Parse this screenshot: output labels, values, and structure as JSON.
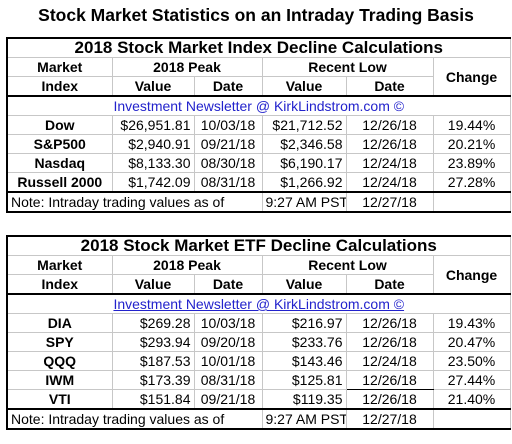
{
  "title": "Stock Market Statistics on an Intraday Trading Basis",
  "headers": {
    "market": "Market",
    "index": "Index",
    "peak": "2018 Peak",
    "low": "Recent Low",
    "value": "Value",
    "date": "Date",
    "change": "Change"
  },
  "newsletter": "Investment Newsletter @ KirkLindstrom.com ©",
  "note": {
    "label": "Note:  Intraday trading values as of",
    "time": "9:27 AM PST",
    "date": "12/27/18"
  },
  "index_table": {
    "title": "2018 Stock Market Index Decline Calculations",
    "rows": [
      {
        "name": "Dow",
        "peak_value": "$26,951.81",
        "peak_date": "10/03/18",
        "low_value": "$21,712.52",
        "low_date": "12/26/18",
        "change": "19.44%"
      },
      {
        "name": "S&P500",
        "peak_value": "$2,940.91",
        "peak_date": "09/21/18",
        "low_value": "$2,346.58",
        "low_date": "12/26/18",
        "change": "20.21%"
      },
      {
        "name": "Nasdaq",
        "peak_value": "$8,133.30",
        "peak_date": "08/30/18",
        "low_value": "$6,190.17",
        "low_date": "12/24/18",
        "change": "23.89%"
      },
      {
        "name": "Russell 2000",
        "peak_value": "$1,742.09",
        "peak_date": "08/31/18",
        "low_value": "$1,266.92",
        "low_date": "12/24/18",
        "change": "27.28%"
      }
    ]
  },
  "etf_table": {
    "title": "2018 Stock Market ETF Decline Calculations",
    "rows": [
      {
        "name": "DIA",
        "peak_value": "$269.28",
        "peak_date": "10/03/18",
        "low_value": "$216.97",
        "low_date": "12/26/18",
        "change": "19.43%"
      },
      {
        "name": "SPY",
        "peak_value": "$293.94",
        "peak_date": "09/20/18",
        "low_value": "$233.76",
        "low_date": "12/26/18",
        "change": "20.47%"
      },
      {
        "name": "QQQ",
        "peak_value": "$187.53",
        "peak_date": "10/01/18",
        "low_value": "$143.46",
        "low_date": "12/24/18",
        "change": "23.50%"
      },
      {
        "name": "IWM",
        "peak_value": "$173.39",
        "peak_date": "08/31/18",
        "low_value": "$125.81",
        "low_date": "12/26/18",
        "change": "27.44%"
      },
      {
        "name": "VTI",
        "peak_value": "$151.84",
        "peak_date": "09/21/18",
        "low_value": "$119.35",
        "low_date": "12/26/18",
        "change": "21.40%"
      }
    ]
  },
  "colors": {
    "newsletter_link": "#2222cc",
    "gridline": "#c7c7c7",
    "border": "#000000"
  }
}
